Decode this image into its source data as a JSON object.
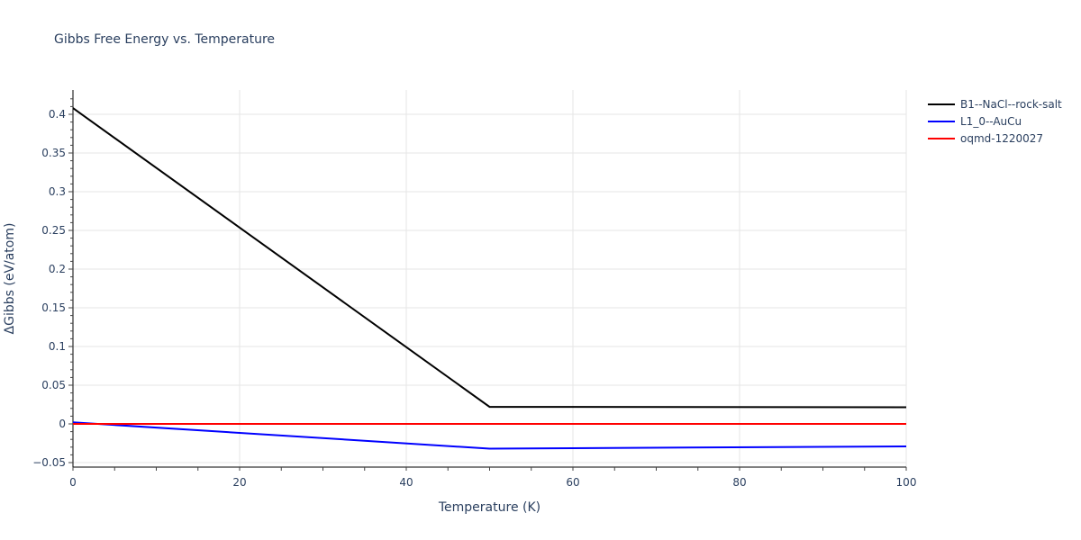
{
  "chart_data": {
    "type": "line",
    "title": "Gibbs Free Energy vs. Temperature",
    "xlabel": "Temperature (K)",
    "ylabel": "ΔGibbs (eV/atom)",
    "xlim": [
      0,
      100
    ],
    "ylim": [
      -0.055,
      0.43
    ],
    "x_ticks": [
      0,
      20,
      40,
      60,
      80,
      100
    ],
    "x_tick_labels": [
      "0",
      "20",
      "40",
      "60",
      "80",
      "100"
    ],
    "y_ticks": [
      -0.05,
      0,
      0.05,
      0.1,
      0.15,
      0.2,
      0.25,
      0.3,
      0.35,
      0.4
    ],
    "y_tick_labels": [
      "−0.05",
      "0",
      "0.05",
      "0.1",
      "0.15",
      "0.2",
      "0.25",
      "0.3",
      "0.35",
      "0.4"
    ],
    "grid": true,
    "legend_position": "right-top",
    "series": [
      {
        "name": "B1--NaCl--rock-salt",
        "color": "#000000",
        "x": [
          0,
          50,
          100
        ],
        "y": [
          0.408,
          0.022,
          0.0215
        ]
      },
      {
        "name": "L1_0--AuCu",
        "color": "#0000ff",
        "x": [
          0,
          50,
          100
        ],
        "y": [
          0.002,
          -0.032,
          -0.029
        ]
      },
      {
        "name": "oqmd-1220027",
        "color": "#ff0000",
        "x": [
          0,
          50,
          100
        ],
        "y": [
          0,
          0,
          0
        ]
      }
    ]
  }
}
